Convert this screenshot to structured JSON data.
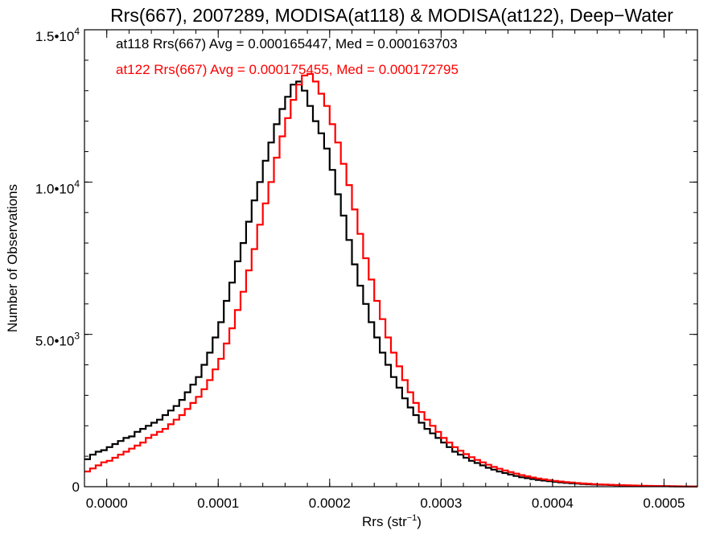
{
  "chart_data": {
    "type": "line",
    "style": "step-histogram",
    "title": "Rrs(667), 2007289, MODISA(at118) & MODISA(at122), Deep−Water",
    "xlabel": "Rrs (str",
    "xlabel_sup": "−1",
    "xlabel_close": ")",
    "ylabel": "Number of Observations",
    "xlim": [
      -2e-05,
      0.00053
    ],
    "ylim": [
      0,
      15000
    ],
    "x_ticks": [
      {
        "value": 0.0,
        "label": "0.0000"
      },
      {
        "value": 0.0001,
        "label": "0.0001"
      },
      {
        "value": 0.0002,
        "label": "0.0002"
      },
      {
        "value": 0.0003,
        "label": "0.0003"
      },
      {
        "value": 0.0004,
        "label": "0.0004"
      },
      {
        "value": 0.0005,
        "label": "0.0005"
      }
    ],
    "y_ticks": [
      {
        "value": 0,
        "label": "0",
        "exp": ""
      },
      {
        "value": 5000,
        "label": "5.0•10",
        "exp": "3"
      },
      {
        "value": 10000,
        "label": "1.0•10",
        "exp": "4"
      },
      {
        "value": 15000,
        "label": "1.5•10",
        "exp": "4"
      }
    ],
    "grid": false,
    "legend_position": "top-left",
    "series": [
      {
        "name": "at118",
        "color": "#000000",
        "legend": "at118 Rrs(667) Avg = 0.000165447, Med = 0.000163703",
        "points": [
          [
            -2e-05,
            900
          ],
          [
            -1.5e-05,
            1050
          ],
          [
            -1e-05,
            1150
          ],
          [
            -5e-06,
            1200
          ],
          [
            0.0,
            1300
          ],
          [
            5e-06,
            1400
          ],
          [
            1e-05,
            1500
          ],
          [
            1.5e-05,
            1600
          ],
          [
            2e-05,
            1650
          ],
          [
            2.5e-05,
            1800
          ],
          [
            3e-05,
            1900
          ],
          [
            3.5e-05,
            2000
          ],
          [
            4e-05,
            2100
          ],
          [
            4.5e-05,
            2200
          ],
          [
            5e-05,
            2350
          ],
          [
            5.5e-05,
            2500
          ],
          [
            6e-05,
            2650
          ],
          [
            6.5e-05,
            2850
          ],
          [
            7e-05,
            3100
          ],
          [
            7.5e-05,
            3350
          ],
          [
            8e-05,
            3600
          ],
          [
            8.5e-05,
            4000
          ],
          [
            9e-05,
            4400
          ],
          [
            9.5e-05,
            4900
          ],
          [
            0.0001,
            5400
          ],
          [
            0.000105,
            6100
          ],
          [
            0.00011,
            6700
          ],
          [
            0.000115,
            7400
          ],
          [
            0.00012,
            8000
          ],
          [
            0.000125,
            8700
          ],
          [
            0.00013,
            9400
          ],
          [
            0.000135,
            10000
          ],
          [
            0.00014,
            10700
          ],
          [
            0.000145,
            11300
          ],
          [
            0.00015,
            11900
          ],
          [
            0.000155,
            12400
          ],
          [
            0.00016,
            12800
          ],
          [
            0.000165,
            13200
          ],
          [
            0.00017,
            13300
          ],
          [
            0.000175,
            13000
          ],
          [
            0.00018,
            12500
          ],
          [
            0.000185,
            12000
          ],
          [
            0.00019,
            11600
          ],
          [
            0.000195,
            11100
          ],
          [
            0.0002,
            10400
          ],
          [
            0.000205,
            9600
          ],
          [
            0.00021,
            8900
          ],
          [
            0.000215,
            8100
          ],
          [
            0.00022,
            7300
          ],
          [
            0.000225,
            6600
          ],
          [
            0.00023,
            6000
          ],
          [
            0.000235,
            5400
          ],
          [
            0.00024,
            4900
          ],
          [
            0.000245,
            4400
          ],
          [
            0.00025,
            4000
          ],
          [
            0.000255,
            3600
          ],
          [
            0.00026,
            3250
          ],
          [
            0.000265,
            2900
          ],
          [
            0.00027,
            2600
          ],
          [
            0.000275,
            2350
          ],
          [
            0.00028,
            2100
          ],
          [
            0.000285,
            1900
          ],
          [
            0.00029,
            1750
          ],
          [
            0.000295,
            1600
          ],
          [
            0.0003,
            1450
          ],
          [
            0.000305,
            1300
          ],
          [
            0.00031,
            1150
          ],
          [
            0.000315,
            1050
          ],
          [
            0.00032,
            950
          ],
          [
            0.000325,
            850
          ],
          [
            0.00033,
            780
          ],
          [
            0.000335,
            700
          ],
          [
            0.00034,
            620
          ],
          [
            0.000345,
            560
          ],
          [
            0.00035,
            500
          ],
          [
            0.000355,
            450
          ],
          [
            0.00036,
            400
          ],
          [
            0.000365,
            350
          ],
          [
            0.00037,
            310
          ],
          [
            0.000375,
            280
          ],
          [
            0.00038,
            250
          ],
          [
            0.000385,
            220
          ],
          [
            0.00039,
            200
          ],
          [
            0.000395,
            180
          ],
          [
            0.0004,
            160
          ],
          [
            0.000405,
            140
          ],
          [
            0.00041,
            125
          ],
          [
            0.000415,
            110
          ],
          [
            0.00042,
            100
          ],
          [
            0.000425,
            90
          ],
          [
            0.00043,
            80
          ],
          [
            0.000435,
            70
          ],
          [
            0.00044,
            65
          ],
          [
            0.000445,
            60
          ],
          [
            0.00045,
            55
          ],
          [
            0.000455,
            50
          ],
          [
            0.00046,
            45
          ],
          [
            0.000465,
            40
          ],
          [
            0.00047,
            35
          ],
          [
            0.000475,
            30
          ],
          [
            0.00048,
            25
          ],
          [
            0.000485,
            22
          ],
          [
            0.00049,
            20
          ],
          [
            0.000495,
            18
          ],
          [
            0.0005,
            15
          ],
          [
            0.000505,
            12
          ],
          [
            0.00051,
            10
          ],
          [
            0.000515,
            8
          ],
          [
            0.00052,
            6
          ],
          [
            0.000525,
            5
          ],
          [
            0.00053,
            4
          ]
        ]
      },
      {
        "name": "at122",
        "color": "#ff0000",
        "legend": "at122 Rrs(667) Avg = 0.000175455, Med = 0.000172795",
        "points": [
          [
            -2e-05,
            500
          ],
          [
            -1.5e-05,
            600
          ],
          [
            -1e-05,
            700
          ],
          [
            -5e-06,
            800
          ],
          [
            0.0,
            850
          ],
          [
            5e-06,
            950
          ],
          [
            1e-05,
            1050
          ],
          [
            1.5e-05,
            1150
          ],
          [
            2e-05,
            1250
          ],
          [
            2.5e-05,
            1350
          ],
          [
            3e-05,
            1450
          ],
          [
            3.5e-05,
            1600
          ],
          [
            4e-05,
            1700
          ],
          [
            4.5e-05,
            1800
          ],
          [
            5e-05,
            1900
          ],
          [
            5.5e-05,
            2050
          ],
          [
            6e-05,
            2200
          ],
          [
            6.5e-05,
            2350
          ],
          [
            7e-05,
            2550
          ],
          [
            7.5e-05,
            2750
          ],
          [
            8e-05,
            2950
          ],
          [
            8.5e-05,
            3200
          ],
          [
            9e-05,
            3500
          ],
          [
            9.5e-05,
            3850
          ],
          [
            0.0001,
            4200
          ],
          [
            0.000105,
            4700
          ],
          [
            0.00011,
            5200
          ],
          [
            0.000115,
            5800
          ],
          [
            0.00012,
            6400
          ],
          [
            0.000125,
            7100
          ],
          [
            0.00013,
            7800
          ],
          [
            0.000135,
            8600
          ],
          [
            0.00014,
            9300
          ],
          [
            0.000145,
            10000
          ],
          [
            0.00015,
            10800
          ],
          [
            0.000155,
            11500
          ],
          [
            0.00016,
            12100
          ],
          [
            0.000165,
            12700
          ],
          [
            0.00017,
            13200
          ],
          [
            0.000175,
            13500
          ],
          [
            0.00018,
            13550
          ],
          [
            0.000185,
            13300
          ],
          [
            0.00019,
            12900
          ],
          [
            0.000195,
            12500
          ],
          [
            0.0002,
            11900
          ],
          [
            0.000205,
            11300
          ],
          [
            0.00021,
            10600
          ],
          [
            0.000215,
            9900
          ],
          [
            0.00022,
            9100
          ],
          [
            0.000225,
            8300
          ],
          [
            0.00023,
            7500
          ],
          [
            0.000235,
            6800
          ],
          [
            0.00024,
            6100
          ],
          [
            0.000245,
            5500
          ],
          [
            0.00025,
            4900
          ],
          [
            0.000255,
            4400
          ],
          [
            0.00026,
            3950
          ],
          [
            0.000265,
            3500
          ],
          [
            0.00027,
            3100
          ],
          [
            0.000275,
            2750
          ],
          [
            0.00028,
            2450
          ],
          [
            0.000285,
            2200
          ],
          [
            0.00029,
            2000
          ],
          [
            0.000295,
            1800
          ],
          [
            0.0003,
            1600
          ],
          [
            0.000305,
            1450
          ],
          [
            0.00031,
            1300
          ],
          [
            0.000315,
            1180
          ],
          [
            0.00032,
            1070
          ],
          [
            0.000325,
            970
          ],
          [
            0.00033,
            880
          ],
          [
            0.000335,
            800
          ],
          [
            0.00034,
            720
          ],
          [
            0.000345,
            650
          ],
          [
            0.00035,
            590
          ],
          [
            0.000355,
            530
          ],
          [
            0.00036,
            480
          ],
          [
            0.000365,
            430
          ],
          [
            0.00037,
            380
          ],
          [
            0.000375,
            340
          ],
          [
            0.00038,
            300
          ],
          [
            0.000385,
            270
          ],
          [
            0.00039,
            240
          ],
          [
            0.000395,
            215
          ],
          [
            0.0004,
            190
          ],
          [
            0.000405,
            170
          ],
          [
            0.00041,
            150
          ],
          [
            0.000415,
            135
          ],
          [
            0.00042,
            120
          ],
          [
            0.000425,
            105
          ],
          [
            0.00043,
            95
          ],
          [
            0.000435,
            85
          ],
          [
            0.00044,
            75
          ],
          [
            0.000445,
            68
          ],
          [
            0.00045,
            60
          ],
          [
            0.000455,
            55
          ],
          [
            0.00046,
            50
          ],
          [
            0.000465,
            45
          ],
          [
            0.00047,
            40
          ],
          [
            0.000475,
            35
          ],
          [
            0.00048,
            30
          ],
          [
            0.000485,
            26
          ],
          [
            0.00049,
            22
          ],
          [
            0.000495,
            20
          ],
          [
            0.0005,
            17
          ],
          [
            0.000505,
            14
          ],
          [
            0.00051,
            12
          ],
          [
            0.000515,
            10
          ],
          [
            0.00052,
            8
          ],
          [
            0.000525,
            6
          ],
          [
            0.00053,
            5
          ]
        ]
      }
    ]
  }
}
